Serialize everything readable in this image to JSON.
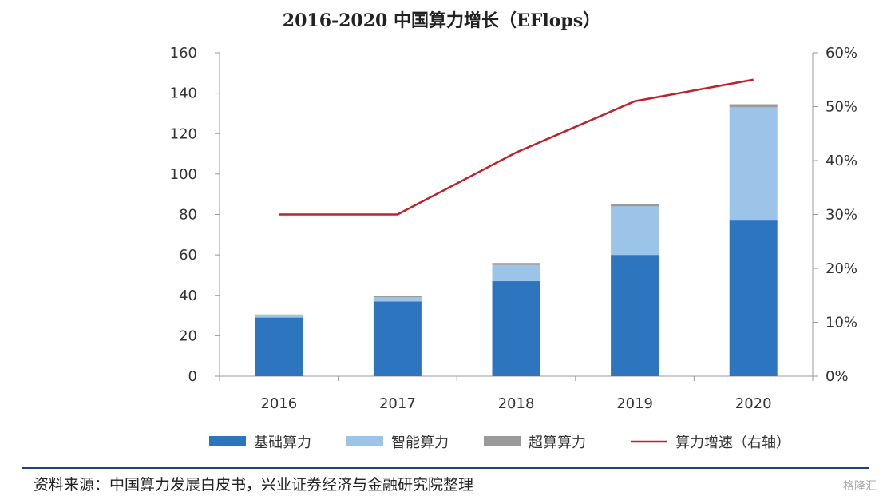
{
  "chart_data": {
    "type": "bar",
    "title": "2016-2020 中国算力增长（EFlops）",
    "categories": [
      "2016",
      "2017",
      "2018",
      "2019",
      "2020"
    ],
    "stacked": true,
    "series": [
      {
        "name": "基础算力",
        "kind": "bar",
        "axis": "left",
        "color": "#2e75c0",
        "values": [
          29,
          37,
          47,
          60,
          77
        ]
      },
      {
        "name": "智能算力",
        "kind": "bar",
        "axis": "left",
        "color": "#9cc3e8",
        "values": [
          1,
          2,
          8,
          24,
          56
        ]
      },
      {
        "name": "超算算力",
        "kind": "bar",
        "axis": "left",
        "color": "#9a9a9a",
        "values": [
          0.5,
          0.5,
          1,
          1,
          1.5
        ]
      },
      {
        "name": "算力增速（右轴）",
        "kind": "line",
        "axis": "right",
        "color": "#c0202a",
        "values": [
          30,
          30,
          41.5,
          51,
          55
        ]
      }
    ],
    "ylim": [
      0,
      160
    ],
    "yticks": [
      "0",
      "20",
      "40",
      "60",
      "80",
      "100",
      "120",
      "140",
      "160"
    ],
    "y2lim": [
      0,
      60
    ],
    "y2ticks": [
      "0%",
      "10%",
      "20%",
      "30%",
      "40%",
      "50%",
      "60%"
    ],
    "legend_position": "bottom",
    "grid": false
  },
  "source": "资料来源：中国算力发展白皮书，兴业证券经济与金融研究院整理",
  "watermark": "格隆汇"
}
